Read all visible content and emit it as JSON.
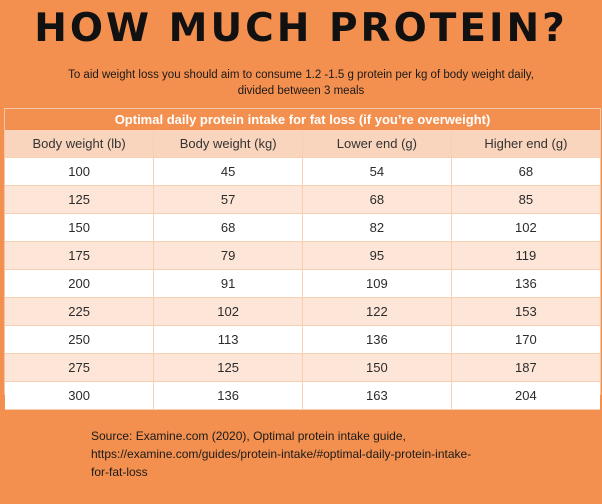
{
  "title": "HOW MUCH PROTEIN?",
  "subtitle": {
    "line1": "To aid weight loss you should aim to consume 1.2 -1.5 g protein per kg of body weight daily,",
    "line2": "divided between 3 meals"
  },
  "table": {
    "title": "Optimal daily protein intake for fat loss (if you’re overweight)",
    "headers": [
      "Body weight (lb)",
      "Body weight (kg)",
      "Lower end (g)",
      "Higher end (g)"
    ],
    "rows": [
      [
        "100",
        "45",
        "54",
        "68"
      ],
      [
        "125",
        "57",
        "68",
        "85"
      ],
      [
        "150",
        "68",
        "82",
        "102"
      ],
      [
        "175",
        "79",
        "95",
        "119"
      ],
      [
        "200",
        "91",
        "109",
        "136"
      ],
      [
        "225",
        "102",
        "122",
        "153"
      ],
      [
        "250",
        "113",
        "136",
        "170"
      ],
      [
        "275",
        "125",
        "150",
        "187"
      ],
      [
        "300",
        "136",
        "163",
        "204"
      ]
    ]
  },
  "source": {
    "line1": "Source: Examine.com (2020),  Optimal protein intake guide,",
    "line2": "https://examine.com/guides/protein-intake/#optimal-daily-protein-intake-",
    "line3": "for-fat-loss"
  },
  "colors": {
    "background": "#f4904f",
    "table_header": "#fad5bd",
    "row_alt": "#fde6d8"
  }
}
